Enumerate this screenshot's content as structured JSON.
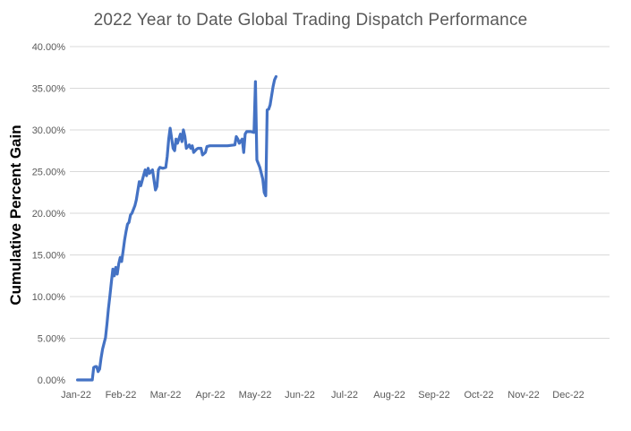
{
  "chart_data": {
    "type": "line",
    "title": "2022 Year to Date Global Trading Dispatch Performance",
    "ylabel": "Cumulative Percent Gain",
    "xlabel": "",
    "ylim": [
      0,
      40
    ],
    "y_tick_step": 5,
    "y_tick_labels": [
      "0.00%",
      "5.00%",
      "10.00%",
      "15.00%",
      "20.00%",
      "25.00%",
      "30.00%",
      "35.00%",
      "40.00%"
    ],
    "x_tick_labels": [
      "Jan-22",
      "Feb-22",
      "Mar-22",
      "Apr-22",
      "May-22",
      "Jun-22",
      "Jul-22",
      "Aug-22",
      "Sep-22",
      "Oct-22",
      "Nov-22",
      "Dec-22"
    ],
    "grid": "horizontal-only",
    "legend": "none",
    "line_color": "#4472C4",
    "gridline_color": "#d9d9d9",
    "title_color": "#595959",
    "tick_label_color": "#595959",
    "series": [
      {
        "name": "Cumulative percent gain (x = days since Jan 1 2022, y = percent)",
        "points": [
          [
            1,
            0
          ],
          [
            4,
            0
          ],
          [
            7,
            0
          ],
          [
            10,
            0
          ],
          [
            11,
            0
          ],
          [
            12,
            1.5
          ],
          [
            13,
            1.6
          ],
          [
            14,
            1.6
          ],
          [
            15,
            1.0
          ],
          [
            16,
            1.3
          ],
          [
            17,
            2.6
          ],
          [
            18,
            3.7
          ],
          [
            20,
            5.1
          ],
          [
            21,
            6.7
          ],
          [
            22,
            8.5
          ],
          [
            23,
            10.1
          ],
          [
            24,
            11.7
          ],
          [
            25,
            13.3
          ],
          [
            26,
            12.5
          ],
          [
            27,
            13.5
          ],
          [
            28,
            12.7
          ],
          [
            29,
            13.9
          ],
          [
            30,
            14.7
          ],
          [
            31,
            14.2
          ],
          [
            32,
            15.5
          ],
          [
            33,
            16.8
          ],
          [
            34,
            17.8
          ],
          [
            35,
            18.7
          ],
          [
            36,
            18.9
          ],
          [
            37,
            19.8
          ],
          [
            38,
            20.0
          ],
          [
            40,
            20.9
          ],
          [
            41,
            21.6
          ],
          [
            43,
            23.8
          ],
          [
            44,
            23.3
          ],
          [
            46,
            24.6
          ],
          [
            47,
            25.2
          ],
          [
            48,
            24.5
          ],
          [
            49,
            25.4
          ],
          [
            50,
            24.8
          ],
          [
            52,
            25.2
          ],
          [
            54,
            22.8
          ],
          [
            55,
            23.2
          ],
          [
            56,
            25.2
          ],
          [
            57,
            25.5
          ],
          [
            59,
            25.4
          ],
          [
            61,
            25.5
          ],
          [
            62,
            26.8
          ],
          [
            63,
            28.9
          ],
          [
            64,
            30.2
          ],
          [
            66,
            27.8
          ],
          [
            67,
            27.5
          ],
          [
            68,
            28.9
          ],
          [
            69,
            28.4
          ],
          [
            71,
            29.5
          ],
          [
            72,
            28.6
          ],
          [
            73,
            30.0
          ],
          [
            74,
            29.2
          ],
          [
            75,
            27.8
          ],
          [
            77,
            28.2
          ],
          [
            78,
            27.8
          ],
          [
            79,
            28.1
          ],
          [
            80,
            27.3
          ],
          [
            82,
            27.7
          ],
          [
            83,
            27.8
          ],
          [
            85,
            27.8
          ],
          [
            86,
            27.0
          ],
          [
            88,
            27.3
          ],
          [
            89,
            28.0
          ],
          [
            91,
            28.1
          ],
          [
            95,
            28.1
          ],
          [
            99,
            28.1
          ],
          [
            103,
            28.1
          ],
          [
            108,
            28.2
          ],
          [
            109,
            29.2
          ],
          [
            110,
            28.9
          ],
          [
            111,
            28.4
          ],
          [
            113,
            28.9
          ],
          [
            114,
            27.3
          ],
          [
            115,
            29.5
          ],
          [
            116,
            29.8
          ],
          [
            119,
            29.8
          ],
          [
            121,
            29.7
          ],
          [
            122,
            35.8
          ],
          [
            123,
            26.4
          ],
          [
            125,
            25.5
          ],
          [
            127,
            24.1
          ],
          [
            128,
            22.5
          ],
          [
            129,
            22.1
          ],
          [
            130,
            32.4
          ],
          [
            131,
            32.5
          ],
          [
            132,
            33.0
          ],
          [
            134,
            35.2
          ],
          [
            135,
            36.0
          ],
          [
            136,
            36.4
          ]
        ]
      }
    ]
  }
}
